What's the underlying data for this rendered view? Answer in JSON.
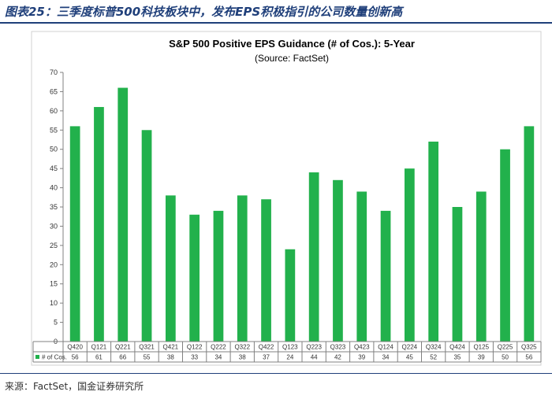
{
  "caption": "图表25：三季度标普500科技板块中，发布EPS积极指引的公司数量创新高",
  "source": "来源：FactSet，国金证券研究所",
  "chart_data": {
    "type": "bar",
    "title": "S&P 500 Positive EPS Guidance (# of Cos.): 5-Year",
    "subtitle": "(Source: FactSet)",
    "categories": [
      "Q420",
      "Q121",
      "Q221",
      "Q321",
      "Q421",
      "Q122",
      "Q222",
      "Q322",
      "Q422",
      "Q123",
      "Q223",
      "Q323",
      "Q423",
      "Q124",
      "Q224",
      "Q324",
      "Q424",
      "Q125",
      "Q225",
      "Q325"
    ],
    "series": [
      {
        "name": "# of Cos.",
        "color": "#22b14c",
        "values": [
          56,
          61,
          66,
          55,
          38,
          33,
          34,
          38,
          37,
          24,
          44,
          42,
          39,
          34,
          45,
          52,
          35,
          39,
          50,
          56
        ]
      }
    ],
    "ylim": [
      0,
      70
    ],
    "yticks": [
      0,
      5,
      10,
      15,
      20,
      25,
      30,
      35,
      40,
      45,
      50,
      55,
      60,
      65,
      70
    ],
    "grid": false,
    "legend": "data-table"
  }
}
